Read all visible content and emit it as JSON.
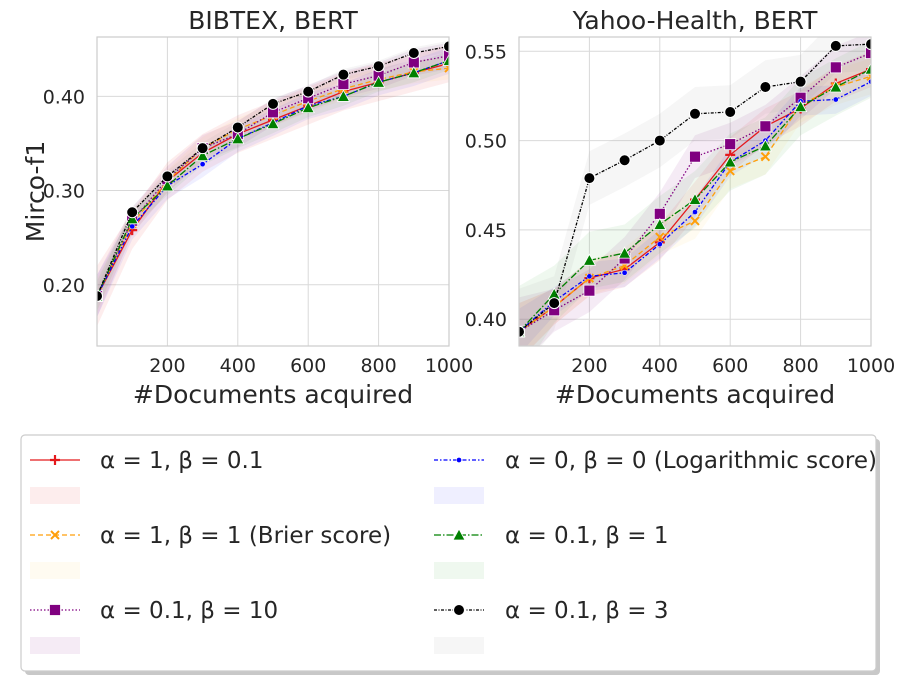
{
  "chart_data": [
    {
      "type": "line",
      "title": "BIBTEX, BERT",
      "xlabel": "#Documents acquired",
      "ylabel": "Mirco-f1",
      "xlim": [
        0,
        1000
      ],
      "ylim": [
        0.135,
        0.463
      ],
      "xticks": [
        200,
        400,
        600,
        800,
        1000
      ],
      "xtick_labels": [
        "200",
        "400",
        "600",
        "800",
        "1000"
      ],
      "yticks": [
        0.2,
        0.3,
        0.4
      ],
      "ytick_labels": [
        "0.20",
        "0.30",
        "0.40"
      ],
      "grid": true,
      "x": [
        0,
        100,
        200,
        300,
        400,
        500,
        600,
        700,
        800,
        900,
        1000
      ],
      "series": [
        {
          "name": "α = 1, β = 0.1",
          "values": [
            0.188,
            0.258,
            0.31,
            0.34,
            0.36,
            0.375,
            0.39,
            0.405,
            0.415,
            0.425,
            0.435
          ],
          "band": 0.02
        },
        {
          "name": "α = 1, β = 1 (Brier score)",
          "values": [
            0.188,
            0.265,
            0.31,
            0.345,
            0.365,
            0.38,
            0.395,
            0.408,
            0.418,
            0.426,
            0.43
          ],
          "band": 0.012
        },
        {
          "name": "α = 0.1, β = 10",
          "values": [
            0.188,
            0.268,
            0.312,
            0.345,
            0.36,
            0.383,
            0.398,
            0.413,
            0.422,
            0.436,
            0.443
          ],
          "band": 0.014
        },
        {
          "name": "α = 0, β = 0 (Logarithmic score)",
          "values": [
            0.188,
            0.262,
            0.305,
            0.328,
            0.355,
            0.372,
            0.39,
            0.4,
            0.415,
            0.425,
            0.438
          ],
          "band": 0.014
        },
        {
          "name": "α = 0.1, β = 1",
          "values": [
            0.188,
            0.27,
            0.305,
            0.337,
            0.355,
            0.371,
            0.388,
            0.4,
            0.415,
            0.425,
            0.438
          ],
          "band": 0.01
        },
        {
          "name": "α = 0.1, β = 3",
          "values": [
            0.188,
            0.277,
            0.315,
            0.345,
            0.367,
            0.392,
            0.405,
            0.423,
            0.432,
            0.446,
            0.453
          ],
          "band": 0.006
        }
      ]
    },
    {
      "type": "line",
      "title": "Yahoo-Health, BERT",
      "xlabel": "#Documents acquired",
      "ylabel": "",
      "xlim": [
        0,
        1000
      ],
      "ylim": [
        0.385,
        0.558
      ],
      "xticks": [
        200,
        400,
        600,
        800,
        1000
      ],
      "xtick_labels": [
        "200",
        "400",
        "600",
        "800",
        "1000"
      ],
      "yticks": [
        0.4,
        0.45,
        0.5,
        0.55
      ],
      "ytick_labels": [
        "0.40",
        "0.45",
        "0.50",
        "0.55"
      ],
      "grid": true,
      "x": [
        0,
        100,
        200,
        300,
        400,
        500,
        600,
        700,
        800,
        900,
        1000
      ],
      "series": [
        {
          "name": "α = 1, β = 0.1",
          "values": [
            0.393,
            0.407,
            0.423,
            0.428,
            0.443,
            0.467,
            0.492,
            0.508,
            0.518,
            0.532,
            0.54
          ],
          "band": 0.01
        },
        {
          "name": "α = 1, β = 1 (Brier score)",
          "values": [
            0.393,
            0.407,
            0.423,
            0.43,
            0.446,
            0.455,
            0.483,
            0.491,
            0.52,
            0.53,
            0.536
          ],
          "band": 0.01
        },
        {
          "name": "α = 0.1, β = 10",
          "values": [
            0.393,
            0.405,
            0.416,
            0.434,
            0.459,
            0.491,
            0.498,
            0.508,
            0.524,
            0.541,
            0.549
          ],
          "band": 0.012
        },
        {
          "name": "α = 0, β = 0 (Logarithmic score)",
          "values": [
            0.393,
            0.41,
            0.424,
            0.426,
            0.442,
            0.46,
            0.488,
            0.5,
            0.522,
            0.523,
            0.533
          ],
          "band": 0.008
        },
        {
          "name": "α = 0.1, β = 1",
          "values": [
            0.393,
            0.414,
            0.433,
            0.437,
            0.453,
            0.467,
            0.488,
            0.497,
            0.519,
            0.53,
            0.54
          ],
          "band": 0.016
        },
        {
          "name": "α = 0.1, β = 3",
          "values": [
            0.393,
            0.409,
            0.479,
            0.489,
            0.5,
            0.515,
            0.516,
            0.53,
            0.533,
            0.553,
            0.554
          ],
          "band": 0.015
        }
      ]
    }
  ],
  "series_styles": [
    {
      "color": "#e41a1c",
      "marker": "plus",
      "dash": "",
      "fill": "#e41a1c"
    },
    {
      "color": "#ff9f0a",
      "marker": "x",
      "dash": "5,3",
      "fill": "#ffd24d"
    },
    {
      "color": "#800080",
      "marker": "square",
      "dash": "1.5,2",
      "fill": "#800080"
    },
    {
      "color": "#0000ff",
      "marker": "dot",
      "dash": "4,2,1.5,2",
      "fill": "#3333ff"
    },
    {
      "color": "#008000",
      "marker": "triangle",
      "dash": "7,2,1.5,2",
      "fill": "#33a033"
    },
    {
      "color": "#000000",
      "marker": "circle",
      "dash": "3,1.5,1,1.5",
      "fill": "#888888"
    }
  ],
  "legend": {
    "placement": "below",
    "columns": 2,
    "items": [
      {
        "label": "α = 1, β = 0.1",
        "style": 0
      },
      {
        "label": "α = 0, β = 0 (Logarithmic score)",
        "style": 3
      },
      {
        "label": "α = 1, β = 1 (Brier score)",
        "style": 1
      },
      {
        "label": "α = 0.1, β = 1",
        "style": 4
      },
      {
        "label": "α = 0.1, β = 10",
        "style": 2
      },
      {
        "label": "α = 0.1, β = 3",
        "style": 5
      }
    ]
  }
}
